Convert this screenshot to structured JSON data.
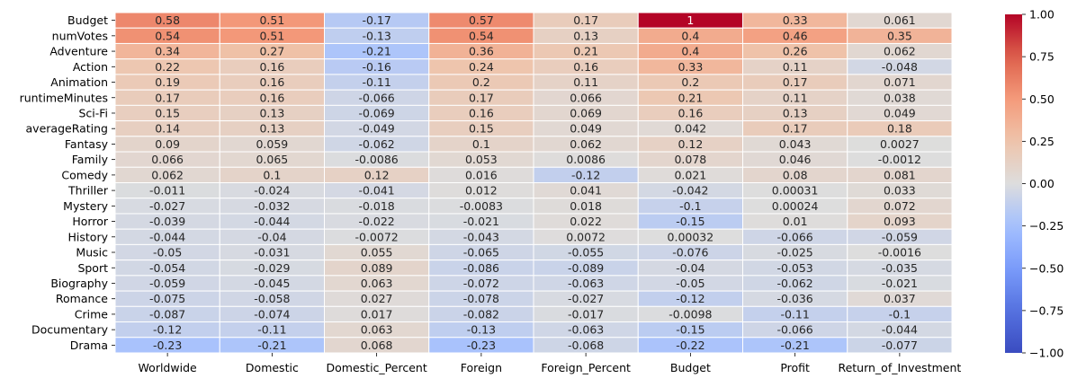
{
  "chart_data": {
    "type": "heatmap",
    "colormap": "coolwarm",
    "vmin": -1,
    "vmax": 1,
    "rows": [
      "Budget",
      "numVotes",
      "Adventure",
      "Action",
      "Animation",
      "runtimeMinutes",
      "Sci-Fi",
      "averageRating",
      "Fantasy",
      "Family",
      "Comedy",
      "Thriller",
      "Mystery",
      "Horror",
      "History",
      "Music",
      "Sport",
      "Biography",
      "Romance",
      "Crime",
      "Documentary",
      "Drama"
    ],
    "columns": [
      "Worldwide",
      "Domestic",
      "Domestic_Percent",
      "Foreign",
      "Foreign_Percent",
      "Budget",
      "Profit",
      "Return_of_Investment"
    ],
    "values": [
      [
        0.58,
        0.51,
        -0.17,
        0.57,
        0.17,
        1,
        0.33,
        0.061
      ],
      [
        0.54,
        0.51,
        -0.13,
        0.54,
        0.13,
        0.4,
        0.46,
        0.35
      ],
      [
        0.34,
        0.27,
        -0.21,
        0.36,
        0.21,
        0.4,
        0.26,
        0.062
      ],
      [
        0.22,
        0.16,
        -0.16,
        0.24,
        0.16,
        0.33,
        0.11,
        -0.048
      ],
      [
        0.19,
        0.16,
        -0.11,
        0.2,
        0.11,
        0.2,
        0.17,
        0.071
      ],
      [
        0.17,
        0.16,
        -0.066,
        0.17,
        0.066,
        0.21,
        0.11,
        0.038
      ],
      [
        0.15,
        0.13,
        -0.069,
        0.16,
        0.069,
        0.16,
        0.13,
        0.049
      ],
      [
        0.14,
        0.13,
        -0.049,
        0.15,
        0.049,
        0.042,
        0.17,
        0.18
      ],
      [
        0.09,
        0.059,
        -0.062,
        0.1,
        0.062,
        0.12,
        0.043,
        0.0027
      ],
      [
        0.066,
        0.065,
        -0.0086,
        0.053,
        0.0086,
        0.078,
        0.046,
        -0.0012
      ],
      [
        0.062,
        0.1,
        0.12,
        0.016,
        -0.12,
        0.021,
        0.08,
        0.081
      ],
      [
        -0.011,
        -0.024,
        -0.041,
        0.012,
        0.041,
        -0.042,
        0.00031,
        0.033
      ],
      [
        -0.027,
        -0.032,
        -0.018,
        -0.0083,
        0.018,
        -0.1,
        0.00024,
        0.072
      ],
      [
        -0.039,
        -0.044,
        -0.022,
        -0.021,
        0.022,
        -0.15,
        0.01,
        0.093
      ],
      [
        -0.044,
        -0.04,
        -0.0072,
        -0.043,
        0.0072,
        0.00032,
        -0.066,
        -0.059
      ],
      [
        -0.05,
        -0.031,
        0.055,
        -0.065,
        -0.055,
        -0.076,
        -0.025,
        -0.0016
      ],
      [
        -0.054,
        -0.029,
        0.089,
        -0.086,
        -0.089,
        -0.04,
        -0.053,
        -0.035
      ],
      [
        -0.059,
        -0.045,
        0.063,
        -0.072,
        -0.063,
        -0.05,
        -0.062,
        -0.021
      ],
      [
        -0.075,
        -0.058,
        0.027,
        -0.078,
        -0.027,
        -0.12,
        -0.036,
        0.037
      ],
      [
        -0.087,
        -0.074,
        0.017,
        -0.082,
        -0.017,
        -0.0098,
        -0.11,
        -0.1
      ],
      [
        -0.12,
        -0.11,
        0.063,
        -0.13,
        -0.063,
        -0.15,
        -0.066,
        -0.044
      ],
      [
        -0.23,
        -0.21,
        0.068,
        -0.23,
        -0.068,
        -0.22,
        -0.21,
        -0.077
      ]
    ],
    "colorbar": {
      "ticks": [
        1.0,
        0.75,
        0.5,
        0.25,
        0.0,
        -0.25,
        -0.5,
        -0.75,
        -1.0
      ],
      "tick_labels": [
        "1.00",
        "0.75",
        "0.50",
        "0.25",
        "0.00",
        "−0.25",
        "−0.50",
        "−0.75",
        "−1.00"
      ]
    }
  }
}
